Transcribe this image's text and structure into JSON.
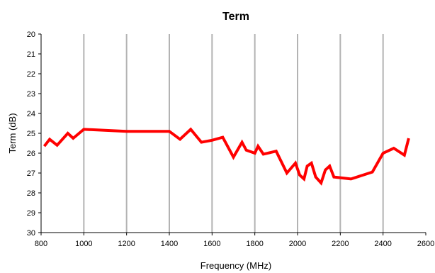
{
  "chart_data": {
    "type": "line",
    "title": "Term",
    "xlabel": "Frequency (MHz)",
    "ylabel": "Term (dB)",
    "xlim": [
      800,
      2600
    ],
    "ylim": [
      20,
      30
    ],
    "y_inverted": true,
    "x_ticks": [
      800,
      1000,
      1200,
      1400,
      1600,
      1800,
      2000,
      2200,
      2400,
      2600
    ],
    "y_ticks": [
      20,
      21,
      22,
      23,
      24,
      25,
      26,
      27,
      28,
      29,
      30
    ],
    "grid": "vertical",
    "legend": "none",
    "series": [
      {
        "color": "#ff0000",
        "x": [
          815,
          840,
          875,
          925,
          950,
          1000,
          1200,
          1400,
          1450,
          1500,
          1550,
          1600,
          1650,
          1700,
          1740,
          1760,
          1800,
          1815,
          1840,
          1900,
          1950,
          1990,
          2010,
          2030,
          2045,
          2065,
          2085,
          2110,
          2130,
          2150,
          2170,
          2250,
          2350,
          2400,
          2450,
          2500,
          2520
        ],
        "y": [
          25.65,
          25.3,
          25.6,
          25.0,
          25.25,
          24.8,
          24.9,
          24.9,
          25.3,
          24.8,
          25.45,
          25.35,
          25.2,
          26.2,
          25.45,
          25.85,
          26.0,
          25.65,
          26.05,
          25.9,
          27.0,
          26.5,
          27.1,
          27.3,
          26.65,
          26.5,
          27.2,
          27.5,
          26.85,
          26.65,
          27.2,
          27.3,
          26.95,
          26.0,
          25.75,
          26.1,
          25.25
        ]
      }
    ]
  }
}
